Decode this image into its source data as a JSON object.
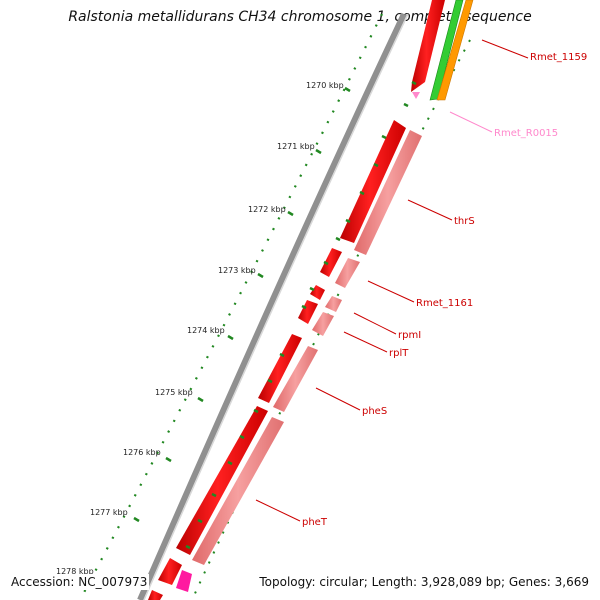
{
  "title": "Ralstonia metallidurans CH34 chromosome 1, complete sequence",
  "accession": "Accession: NC_007973",
  "summary": "Topology: circular; Length: 3,928,089 bp; Genes: 3,669",
  "scale_labels": [
    "1270 kbp",
    "1271 kbp",
    "1272 kbp",
    "1273 kbp",
    "1274 kbp",
    "1275 kbp",
    "1276 kbp",
    "1277 kbp",
    "1278 kbp"
  ],
  "gene_labels": [
    {
      "name": "Rmet_1159",
      "color": "#cc0000"
    },
    {
      "name": "Rmet_R0015",
      "color": "#ff88cc"
    },
    {
      "name": "thrS",
      "color": "#cc0000"
    },
    {
      "name": "Rmet_1161",
      "color": "#cc0000"
    },
    {
      "name": "rpmI",
      "color": "#cc0000"
    },
    {
      "name": "rplT",
      "color": "#cc0000"
    },
    {
      "name": "pheS",
      "color": "#cc0000"
    },
    {
      "name": "pheT",
      "color": "#cc0000"
    }
  ],
  "colors": {
    "cds": "#ee0000",
    "cds_light": "#f08080",
    "rna": "#ff66cc",
    "green": "#33cc33",
    "orange": "#ff9900",
    "backbone": "#888888",
    "tick": "#228822"
  }
}
